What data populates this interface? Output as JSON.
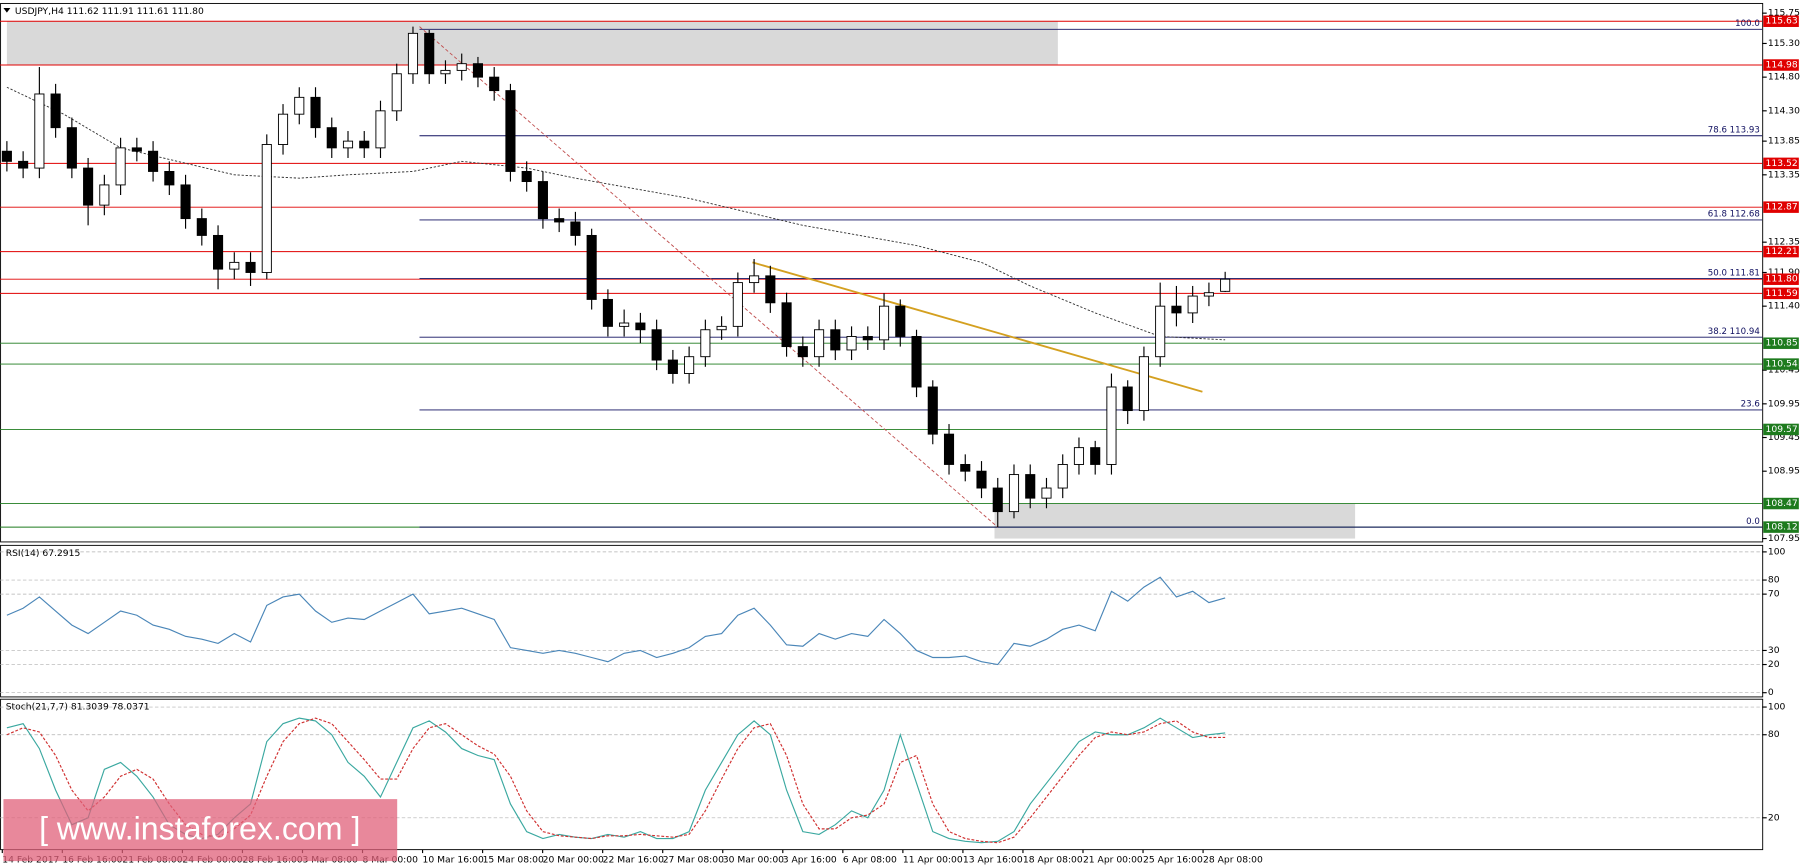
{
  "chart_data": [
    {
      "type": "candlestick",
      "title": "USDJPY,H4  111.62 111.91 111.61 111.80",
      "date_labels": [
        "14 Feb 2017",
        "16 Feb 16:00",
        "21 Feb 08:00",
        "24 Feb 00:00",
        "28 Feb 16:00",
        "3 Mar 08:00",
        "8 Mar 00:00",
        "10 Mar 16:00",
        "15 Mar 08:00",
        "20 Mar 00:00",
        "22 Mar 16:00",
        "27 Mar 08:00",
        "30 Mar 00:00",
        "3 Apr 16:00",
        "6 Apr 08:00",
        "11 Apr 00:00",
        "13 Apr 16:00",
        "18 Apr 08:00",
        "21 Apr 00:00",
        "25 Apr 16:00",
        "28 Apr 08:00"
      ],
      "open": [
        113.7,
        113.55,
        113.45,
        114.55,
        114.05,
        113.45,
        112.9,
        113.2,
        113.75,
        113.7,
        113.4,
        113.2,
        112.7,
        112.45,
        111.95,
        112.05,
        111.9,
        113.8,
        114.25,
        114.5,
        114.05,
        113.75,
        113.85,
        113.75,
        114.3,
        114.85,
        115.45,
        114.85,
        114.9,
        115.0,
        114.8,
        114.6,
        113.4,
        113.25,
        112.7,
        112.65,
        112.45,
        111.5,
        111.1,
        111.15,
        111.05,
        110.6,
        110.4,
        110.65,
        111.05,
        111.1,
        111.75,
        111.85,
        111.45,
        110.8,
        110.65,
        111.05,
        110.75,
        110.95,
        110.9,
        111.4,
        110.95,
        110.2,
        109.5,
        109.05,
        108.95,
        108.7,
        108.35,
        108.9,
        108.55,
        108.7,
        109.05,
        109.3,
        109.05,
        110.2,
        109.85,
        110.65,
        111.4,
        111.3,
        111.55,
        111.62
      ],
      "high": [
        113.85,
        113.7,
        114.95,
        114.7,
        114.2,
        113.6,
        113.35,
        113.9,
        113.9,
        113.85,
        113.55,
        113.35,
        112.85,
        112.6,
        112.2,
        112.2,
        113.95,
        114.4,
        114.65,
        114.65,
        114.2,
        114.0,
        114.0,
        114.45,
        115.0,
        115.55,
        115.5,
        115.05,
        115.15,
        115.1,
        114.95,
        114.7,
        113.55,
        113.4,
        112.85,
        112.8,
        112.55,
        111.65,
        111.35,
        111.3,
        111.2,
        110.75,
        110.8,
        111.2,
        111.25,
        111.9,
        112.1,
        112.0,
        111.6,
        110.95,
        111.2,
        111.2,
        111.1,
        111.1,
        111.59,
        111.5,
        111.05,
        110.3,
        109.65,
        109.2,
        109.1,
        108.85,
        109.05,
        109.05,
        108.85,
        109.2,
        109.45,
        109.4,
        110.4,
        110.3,
        110.8,
        111.75,
        111.7,
        111.7,
        111.75,
        111.91
      ],
      "low": [
        113.4,
        113.3,
        113.3,
        113.9,
        113.3,
        112.6,
        112.75,
        113.05,
        113.55,
        113.25,
        113.05,
        112.55,
        112.3,
        111.65,
        111.8,
        111.7,
        111.8,
        113.65,
        114.1,
        113.9,
        113.6,
        113.6,
        113.6,
        113.6,
        114.15,
        114.7,
        114.7,
        114.7,
        114.75,
        114.65,
        114.45,
        113.25,
        113.1,
        112.55,
        112.5,
        112.3,
        111.35,
        110.95,
        110.95,
        110.85,
        110.45,
        110.25,
        110.25,
        110.5,
        110.9,
        110.95,
        111.6,
        111.3,
        110.65,
        110.5,
        110.5,
        110.6,
        110.6,
        110.75,
        110.75,
        110.8,
        110.05,
        109.35,
        108.9,
        108.8,
        108.55,
        108.12,
        108.25,
        108.4,
        108.4,
        108.55,
        108.9,
        108.9,
        108.9,
        109.65,
        109.7,
        110.5,
        111.1,
        111.15,
        111.4,
        111.61
      ],
      "close": [
        113.55,
        113.45,
        114.55,
        114.05,
        113.45,
        112.9,
        113.2,
        113.75,
        113.7,
        113.4,
        113.2,
        112.7,
        112.45,
        111.95,
        112.05,
        111.9,
        113.8,
        114.25,
        114.5,
        114.05,
        113.75,
        113.85,
        113.75,
        114.3,
        114.85,
        115.45,
        114.85,
        114.9,
        115.0,
        114.8,
        114.6,
        113.4,
        113.25,
        112.7,
        112.65,
        112.45,
        111.5,
        111.1,
        111.15,
        111.05,
        110.6,
        110.4,
        110.65,
        111.05,
        111.1,
        111.75,
        111.85,
        111.45,
        110.8,
        110.65,
        111.05,
        110.75,
        110.95,
        110.9,
        111.4,
        110.95,
        110.2,
        109.5,
        109.05,
        108.95,
        108.7,
        108.35,
        108.9,
        108.55,
        108.7,
        109.05,
        109.3,
        109.05,
        110.2,
        109.85,
        110.65,
        111.4,
        111.3,
        111.55,
        111.6,
        111.8
      ],
      "up_color": "#ffffff",
      "down_color": "#000000",
      "ylim": [
        107.9,
        115.86
      ],
      "yticks": [
        115.75,
        {
          "value": 115.3,
          "label": "115.30"
        },
        {
          "value": 114.8,
          "label": "114.80"
        },
        {
          "value": 114.3,
          "label": "114.30"
        },
        113.85,
        113.35,
        112.35,
        {
          "value": 111.9,
          "label": "111.90"
        },
        {
          "value": 111.4,
          "label": "111.40"
        },
        110.45,
        109.95,
        109.45,
        108.95,
        107.95
      ],
      "moving_average": {
        "color": "#333333",
        "x": [
          0,
          3.5,
          7,
          14,
          18,
          21,
          25,
          28,
          32,
          35,
          42,
          49,
          56,
          60,
          63,
          67,
          71,
          75
        ],
        "values": [
          114.65,
          114.25,
          113.75,
          113.35,
          113.3,
          113.35,
          113.4,
          113.55,
          113.45,
          113.3,
          113.0,
          112.6,
          112.3,
          112.05,
          111.7,
          111.3,
          110.95,
          110.9
        ]
      },
      "trendlines": [
        {
          "color": "#c05050",
          "dashed": true,
          "x": [
            25.4,
            61
          ],
          "values": [
            115.55,
            108.12
          ]
        },
        {
          "color": "#d4a020",
          "dashed": false,
          "x": [
            45.9,
            73.6
          ],
          "values": [
            112.05,
            110.13
          ]
        }
      ],
      "zones": [
        {
          "color": "#d9d9d9",
          "x": [
            0,
            64.7
          ],
          "values": [
            114.98,
            115.63
          ]
        },
        {
          "color": "#d9d9d9",
          "x": [
            60.8,
            83.0
          ],
          "values": [
            107.95,
            108.47
          ]
        }
      ],
      "levels": [
        {
          "value": 115.63,
          "color": "#e00000"
        },
        {
          "value": 114.98,
          "color": "#e00000"
        },
        {
          "value": 113.52,
          "color": "#e00000"
        },
        {
          "value": 112.87,
          "color": "#e00000"
        },
        {
          "value": 112.21,
          "color": "#e00000"
        },
        {
          "value": {
            "value": 111.8,
            "label": "111.80"
          },
          "color": "#e00000"
        },
        {
          "value": 111.59,
          "color": "#e00000"
        },
        {
          "value": 110.85,
          "color": "#1e7b1e"
        },
        {
          "value": 110.54,
          "color": "#1e7b1e"
        },
        {
          "value": 109.57,
          "color": "#1e7b1e"
        },
        {
          "value": 108.47,
          "color": "#1e7b1e"
        },
        {
          "value": 108.12,
          "color": "#1e7b1e"
        }
      ],
      "fibonacci": {
        "x_start": 25.4,
        "color": "#101060",
        "levels": [
          {
            "value": 115.51,
            "label": "100.0"
          },
          {
            "value": 113.93,
            "label": "78.6 113.93"
          },
          {
            "value": 112.68,
            "label": "61.8 112.68"
          },
          {
            "value": 111.81,
            "label": "50.0 111.81"
          },
          {
            "value": 110.94,
            "label": "38.2 110.94"
          },
          {
            "value": 109.86,
            "label": "23.6"
          },
          {
            "value": 108.12,
            "label": "0.0"
          }
        ]
      }
    },
    {
      "type": "line",
      "title": "RSI(14) 67.2915",
      "ylim": [
        -3,
        103
      ],
      "yticks": [
        100,
        80,
        70,
        30,
        20,
        0
      ],
      "grid": true,
      "series": [
        {
          "color": "#4a86b8",
          "dashed": false,
          "values": [
            55,
            60,
            68,
            58,
            48,
            42,
            50,
            58,
            55,
            48,
            45,
            40,
            38,
            35,
            42,
            36,
            62,
            68,
            70,
            58,
            50,
            53,
            52,
            58,
            64,
            70,
            56,
            58,
            60,
            56,
            52,
            32,
            30,
            28,
            30,
            28,
            25,
            22,
            28,
            30,
            25,
            28,
            32,
            40,
            42,
            55,
            60,
            48,
            34,
            33,
            42,
            38,
            42,
            40,
            52,
            42,
            30,
            25,
            25,
            26,
            22,
            20,
            35,
            33,
            38,
            45,
            48,
            44,
            72,
            65,
            75,
            82,
            68,
            72,
            64,
            67.2915
          ]
        }
      ]
    },
    {
      "type": "line",
      "title": "Stoch(21,7,7) 81.3039 78.0371",
      "ylim": [
        -3,
        104
      ],
      "yticks": [
        100,
        80,
        20
      ],
      "grid": true,
      "series": [
        {
          "color": "#3aa8a0",
          "dashed": false,
          "values": [
            85,
            88,
            70,
            40,
            15,
            20,
            55,
            60,
            50,
            35,
            15,
            8,
            5,
            8,
            20,
            30,
            75,
            88,
            92,
            90,
            80,
            60,
            50,
            35,
            60,
            85,
            90,
            82,
            70,
            65,
            62,
            30,
            10,
            5,
            8,
            6,
            5,
            8,
            6,
            10,
            5,
            5,
            10,
            40,
            60,
            80,
            90,
            80,
            40,
            10,
            8,
            15,
            25,
            20,
            40,
            80,
            45,
            10,
            5,
            3,
            2,
            3,
            10,
            30,
            45,
            60,
            75,
            82,
            80,
            80,
            85,
            92,
            85,
            78,
            80,
            81.3039
          ]
        },
        {
          "color": "#d03030",
          "dashed": true,
          "values": [
            80,
            85,
            82,
            65,
            40,
            25,
            35,
            50,
            55,
            48,
            30,
            15,
            8,
            6,
            12,
            22,
            50,
            75,
            88,
            92,
            88,
            75,
            62,
            48,
            48,
            70,
            85,
            88,
            80,
            72,
            66,
            50,
            25,
            10,
            7,
            6,
            5,
            7,
            7,
            8,
            7,
            6,
            8,
            25,
            48,
            70,
            85,
            88,
            65,
            30,
            12,
            12,
            20,
            22,
            30,
            60,
            65,
            30,
            10,
            5,
            3,
            2,
            6,
            20,
            35,
            50,
            65,
            78,
            82,
            80,
            82,
            88,
            90,
            82,
            78,
            78.0371
          ]
        }
      ]
    }
  ],
  "watermark": "[ www.instaforex.com ]"
}
